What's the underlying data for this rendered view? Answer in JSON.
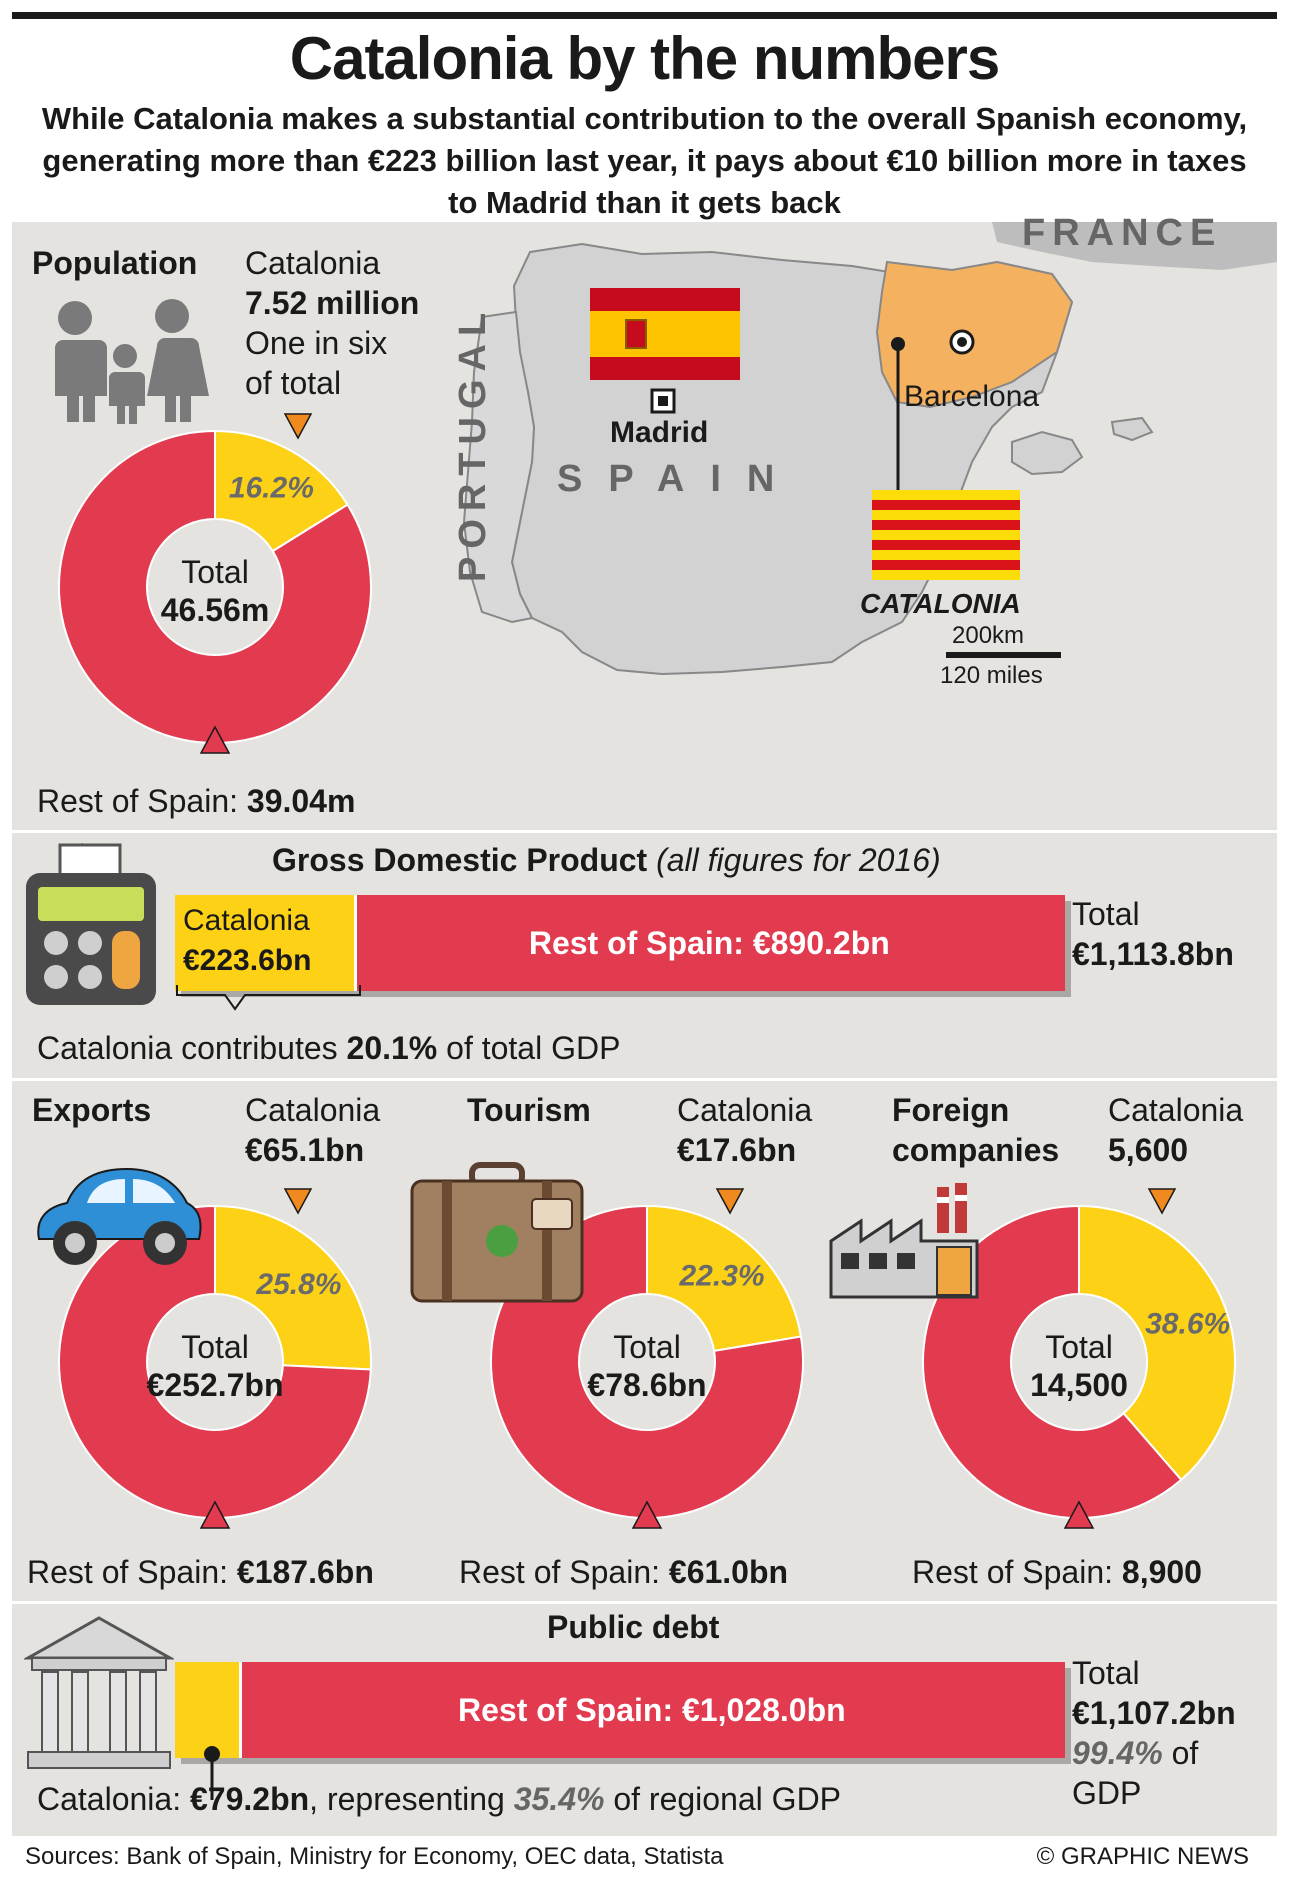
{
  "title": "Catalonia by the numbers",
  "subtitle": "While Catalonia makes a substantial contribution to the overall Spanish economy, generating more than €223 billion last year, it pays about €10 billion more in taxes to Madrid than it gets back",
  "colors": {
    "catalonia": "#fcd116",
    "rest": "#e23a4f",
    "panel": "#e4e3df",
    "catalonia_map": "#f4b160"
  },
  "population": {
    "heading": "Population",
    "catalonia_label": "Catalonia",
    "catalonia_value": "7.52 million",
    "note_line1": "One in six",
    "note_line2": "of total",
    "total_label": "Total",
    "total_value": "46.56m",
    "rest_label": "Rest of Spain:",
    "rest_value": "39.04m",
    "icon": "family-icon"
  },
  "map": {
    "france": "FRANCE",
    "portugal": "PORTUGAL",
    "spain": "SPAIN",
    "madrid": "Madrid",
    "barcelona": "Barcelona",
    "catalonia": "CATALONIA",
    "scale_km": "200km",
    "scale_miles": "120 miles"
  },
  "gdp": {
    "heading": "Gross Domestic Product",
    "heading_note": "(all figures for 2016)",
    "catalonia_label": "Catalonia",
    "catalonia_value": "€223.6bn",
    "rest_text": "Rest of Spain: €890.2bn",
    "total_label": "Total",
    "total_value": "€1,113.8bn",
    "footnote_prefix": "Catalonia contributes",
    "footnote_value": "20.1%",
    "footnote_suffix": "of total GDP",
    "icon": "calculator-icon"
  },
  "exports": {
    "heading": "Exports",
    "catalonia_label": "Catalonia",
    "catalonia_value": "€65.1bn",
    "total_label": "Total",
    "total_value": "€252.7bn",
    "rest_label": "Rest of Spain:",
    "rest_value": "€187.6bn",
    "icon": "car-icon"
  },
  "tourism": {
    "heading": "Tourism",
    "catalonia_label": "Catalonia",
    "catalonia_value": "€17.6bn",
    "total_label": "Total",
    "total_value": "€78.6bn",
    "rest_label": "Rest of Spain:",
    "rest_value": "€61.0bn",
    "icon": "suitcase-icon"
  },
  "foreign": {
    "heading_line1": "Foreign",
    "heading_line2": "companies",
    "catalonia_label": "Catalonia",
    "catalonia_value": "5,600",
    "total_label": "Total",
    "total_value": "14,500",
    "rest_label": "Rest of Spain:",
    "rest_value": "8,900",
    "icon": "factory-icon"
  },
  "debt": {
    "heading": "Public debt",
    "rest_text": "Rest of Spain: €1,028.0bn",
    "total_label": "Total",
    "total_value": "€1,107.2bn",
    "total_pct": "99.4%",
    "total_pct_suffix": "of",
    "total_pct_line2": "GDP",
    "catalonia_label": "Catalonia:",
    "catalonia_value": "€79.2bn",
    "note_prefix": ", representing",
    "note_pct": "35.4%",
    "note_suffix": "of regional GDP",
    "icon": "bank-building-icon"
  },
  "sources": "Sources: Bank of Spain, Ministry for Economy, OEC data, Statista",
  "credit": "© GRAPHIC NEWS",
  "chart_data": [
    {
      "type": "pie",
      "title": "Population",
      "categories": [
        "Catalonia",
        "Rest of Spain"
      ],
      "values": [
        7.52,
        39.04
      ],
      "data_labels": [
        "16.2%",
        ""
      ],
      "total": 46.56
    },
    {
      "type": "bar",
      "title": "Gross Domestic Product",
      "categories": [
        "Catalonia",
        "Rest of Spain"
      ],
      "values": [
        223.6,
        890.2
      ],
      "total": 1113.8
    },
    {
      "type": "pie",
      "title": "Exports",
      "categories": [
        "Catalonia",
        "Rest of Spain"
      ],
      "values": [
        65.1,
        187.6
      ],
      "data_labels": [
        "25.8%",
        ""
      ],
      "total": 252.7
    },
    {
      "type": "pie",
      "title": "Tourism",
      "categories": [
        "Catalonia",
        "Rest of Spain"
      ],
      "values": [
        17.6,
        61.0
      ],
      "data_labels": [
        "22.3%",
        ""
      ],
      "total": 78.6
    },
    {
      "type": "pie",
      "title": "Foreign companies",
      "categories": [
        "Catalonia",
        "Rest of Spain"
      ],
      "values": [
        5600,
        8900
      ],
      "data_labels": [
        "38.6%",
        ""
      ],
      "total": 14500
    },
    {
      "type": "bar",
      "title": "Public debt",
      "categories": [
        "Catalonia",
        "Rest of Spain"
      ],
      "values": [
        79.2,
        1028.0
      ],
      "total": 1107.2
    }
  ]
}
